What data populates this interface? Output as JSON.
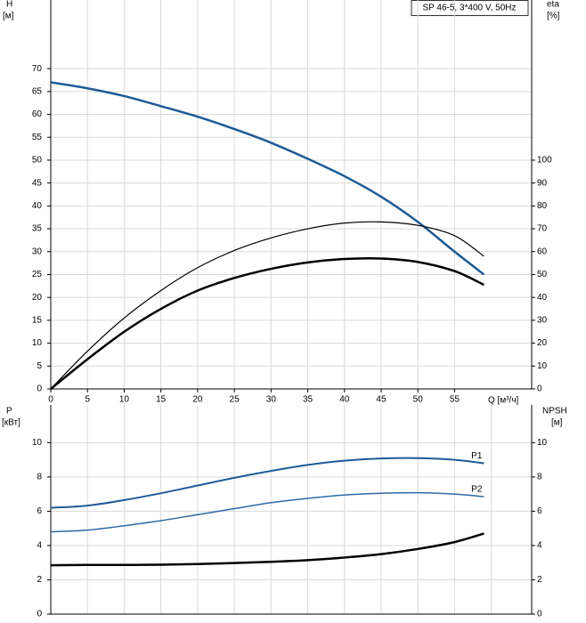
{
  "chart_data": [
    {
      "type": "line",
      "title": "SP 46-5, 3*400 V, 50Hz",
      "y_label": "H",
      "y_unit": "[м]",
      "y2_label": "eta",
      "y2_unit": "[%]",
      "x_label": "Q [м³/ч]",
      "xlim": [
        0,
        65.5
      ],
      "xticks": [
        0,
        5,
        10,
        15,
        20,
        25,
        30,
        35,
        40,
        45,
        50,
        55
      ],
      "ylim": [
        0,
        85
      ],
      "yticks": [
        0,
        5,
        10,
        15,
        20,
        25,
        30,
        35,
        40,
        45,
        50,
        55,
        60,
        65,
        70
      ],
      "y2lim": [
        0,
        170
      ],
      "y2ticks": [
        0,
        10,
        20,
        30,
        40,
        50,
        60,
        70,
        80,
        90,
        100
      ],
      "grid": true,
      "series": [
        {
          "color": "#1f5a96",
          "width": 2.5,
          "x": [
            0,
            5,
            10,
            15,
            20,
            25,
            30,
            35,
            40,
            45,
            50,
            55,
            59
          ],
          "values": [
            67,
            65.7,
            64,
            61.8,
            59.5,
            56.8,
            53.8,
            50.3,
            46.5,
            42,
            36.5,
            30,
            25
          ]
        },
        {
          "color": "#000000",
          "width": 1.2,
          "axis": "y2",
          "x": [
            0,
            5,
            10,
            15,
            20,
            25,
            30,
            35,
            40,
            45,
            50,
            55,
            59
          ],
          "values": [
            0,
            16.5,
            31,
            43,
            53,
            60.5,
            66,
            70,
            72.5,
            73,
            71.5,
            67,
            58
          ]
        },
        {
          "color": "#000000",
          "width": 2.5,
          "axis": "y2",
          "x": [
            0,
            5,
            10,
            15,
            20,
            25,
            30,
            35,
            40,
            45,
            50,
            55,
            59
          ],
          "values": [
            0,
            13,
            25,
            35,
            43,
            48.5,
            52.5,
            55.3,
            56.8,
            57,
            55.5,
            51.5,
            45.5
          ]
        }
      ]
    },
    {
      "type": "line",
      "y_label": "P",
      "y_unit": "[кВт]",
      "y2_label": "NPSH",
      "y2_unit": "[м]",
      "xlim": [
        0,
        65.5
      ],
      "xgrid": [
        0,
        5,
        10,
        15,
        20,
        25,
        30,
        35,
        40,
        45,
        50,
        55,
        60
      ],
      "ylim": [
        0,
        12.2
      ],
      "yticks": [
        0,
        2,
        4,
        6,
        8,
        10
      ],
      "y2lim": [
        0,
        12.2
      ],
      "y2ticks": [
        0,
        2,
        4,
        6,
        8,
        10
      ],
      "grid": true,
      "series": [
        {
          "name": "P1",
          "color": "#1f5a96",
          "width": 2,
          "x": [
            0,
            5,
            10,
            15,
            20,
            25,
            30,
            35,
            40,
            45,
            50,
            55,
            59
          ],
          "values": [
            6.2,
            6.33,
            6.65,
            7.05,
            7.5,
            7.95,
            8.35,
            8.7,
            8.95,
            9.08,
            9.1,
            9.0,
            8.8
          ]
        },
        {
          "name": "P2",
          "color": "#2d6aa6",
          "width": 1.5,
          "x": [
            0,
            5,
            10,
            15,
            20,
            25,
            30,
            35,
            40,
            45,
            50,
            55,
            59
          ],
          "values": [
            4.8,
            4.9,
            5.15,
            5.45,
            5.8,
            6.15,
            6.5,
            6.75,
            6.95,
            7.05,
            7.08,
            7.0,
            6.85
          ]
        },
        {
          "color": "#000000",
          "width": 2.5,
          "axis": "y2",
          "x": [
            0,
            5,
            10,
            15,
            20,
            25,
            30,
            35,
            40,
            45,
            50,
            55,
            59
          ],
          "values": [
            2.85,
            2.87,
            2.87,
            2.88,
            2.92,
            2.98,
            3.05,
            3.15,
            3.3,
            3.5,
            3.8,
            4.2,
            4.7
          ]
        }
      ]
    }
  ]
}
